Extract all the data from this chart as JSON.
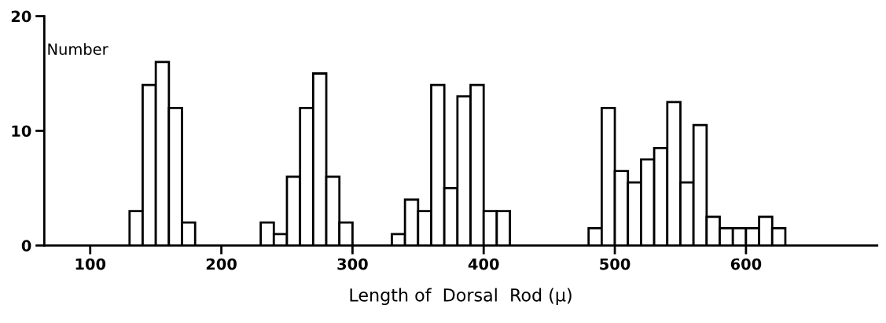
{
  "chart_data": {
    "type": "histogram",
    "xlabel": "Length of  Dorsal  Rod (μ)",
    "ylabel": "Number",
    "bins": [
      130,
      140,
      150,
      160,
      170,
      180,
      190,
      200,
      210,
      220,
      230,
      240,
      250,
      260,
      270,
      280,
      290,
      300,
      310,
      320,
      330,
      340,
      350,
      360,
      370,
      380,
      390,
      400,
      410,
      420,
      430,
      440,
      450,
      460,
      470,
      480,
      490,
      500,
      510,
      520,
      530,
      540,
      550,
      560,
      570,
      580,
      590,
      600,
      610,
      620,
      630
    ],
    "values": [
      3,
      14,
      16,
      12,
      2,
      0,
      0,
      0,
      0,
      0,
      2,
      1,
      6,
      12,
      15,
      6,
      2,
      0,
      0,
      0,
      1,
      4,
      3,
      14,
      5,
      13,
      14,
      3,
      3,
      0,
      0,
      0,
      0,
      0,
      0,
      1.5,
      12,
      6.5,
      5.5,
      7.5,
      8.5,
      12.5,
      5.5,
      10.5,
      2.5,
      1.5,
      1.5,
      1.5,
      2.5,
      1.5
    ],
    "color": "#ffffff",
    "xlim": [
      65,
      700
    ],
    "ylim": [
      0,
      20
    ],
    "xticks": [
      100,
      200,
      300,
      400,
      500,
      600
    ],
    "yticks": [
      0,
      10,
      20
    ],
    "grid": false
  }
}
